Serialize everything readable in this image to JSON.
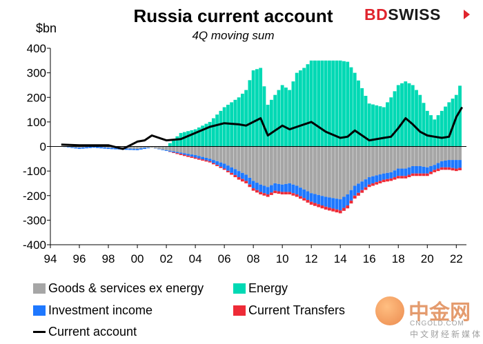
{
  "header": {
    "title": "Russia current account",
    "subtitle": "4Q moving sum",
    "y_unit": "$bn"
  },
  "logo": {
    "part1": "BD",
    "part2": "SWISS"
  },
  "watermark": {
    "main": "中金网",
    "sub_en": "CNGOLD.COM",
    "sub_cn": "中文财经新媒体"
  },
  "colors": {
    "goods": "#a6a6a6",
    "energy": "#00d9b4",
    "investment": "#1e78ff",
    "transfers": "#ee2b37",
    "current_account": "#000000"
  },
  "legend": {
    "goods": "Goods & services ex energy",
    "energy": "Energy",
    "investment": "Investment income",
    "transfers": "Current Transfers",
    "current_account": "Current account"
  },
  "chart_data": {
    "type": "bar",
    "stacked": true,
    "title": "Russia current account",
    "subtitle": "4Q moving sum",
    "ylabel": "$bn",
    "ylim": [
      -400,
      400
    ],
    "yticks": [
      -400,
      -300,
      -200,
      -100,
      0,
      100,
      200,
      300,
      400
    ],
    "xlim": [
      1994,
      2022.7
    ],
    "xticks": [
      "94",
      "96",
      "98",
      "00",
      "02",
      "04",
      "06",
      "08",
      "10",
      "12",
      "14",
      "16",
      "18",
      "20",
      "22"
    ],
    "grid": false,
    "legend_position": "bottom",
    "anchors": {
      "x": [
        1994.75,
        1996,
        1997,
        1998,
        1999,
        2000,
        2000.5,
        2001,
        2002,
        2003,
        2004,
        2005,
        2006,
        2007,
        2007.5,
        2008,
        2008.5,
        2009,
        2009.5,
        2010,
        2010.5,
        2011,
        2011.5,
        2012,
        2013,
        2014,
        2014.5,
        2015,
        2016,
        2017,
        2017.5,
        2018,
        2018.5,
        2019,
        2019.5,
        2020,
        2020.5,
        2021,
        2021.5,
        2022,
        2022.4
      ],
      "goods": [
        0,
        -5,
        0,
        -5,
        -8,
        -10,
        -5,
        -5,
        -15,
        -25,
        -35,
        -50,
        -70,
        -100,
        -115,
        -140,
        -155,
        -165,
        -150,
        -155,
        -150,
        -160,
        -175,
        -190,
        -205,
        -215,
        -195,
        -160,
        -125,
        -110,
        -105,
        -90,
        -90,
        -80,
        -80,
        -85,
        -75,
        -60,
        -55,
        -55,
        -55
      ],
      "energy": [
        0,
        0,
        0,
        0,
        0,
        0,
        0,
        0,
        0,
        55,
        70,
        100,
        160,
        200,
        230,
        310,
        320,
        170,
        210,
        250,
        230,
        300,
        320,
        350,
        350,
        350,
        345,
        300,
        175,
        160,
        200,
        250,
        265,
        250,
        210,
        145,
        110,
        145,
        180,
        210,
        270
      ],
      "investment": [
        0,
        -5,
        -5,
        -5,
        -5,
        -5,
        -5,
        0,
        -3,
        -5,
        -10,
        -10,
        -20,
        -25,
        -25,
        -30,
        -30,
        -30,
        -30,
        -30,
        -35,
        -35,
        -35,
        -35,
        -40,
        -45,
        -45,
        -40,
        -30,
        -25,
        -25,
        -30,
        -30,
        -30,
        -30,
        -25,
        -20,
        -25,
        -30,
        -35,
        -30
      ],
      "transfers": [
        0,
        0,
        0,
        0,
        0,
        0,
        0,
        0,
        0,
        -5,
        -5,
        -5,
        -5,
        -10,
        -10,
        -10,
        -10,
        -10,
        -10,
        -10,
        -10,
        -10,
        -10,
        -12,
        -12,
        -12,
        -12,
        -12,
        -10,
        -10,
        -10,
        -10,
        -10,
        -10,
        -10,
        -10,
        -10,
        -10,
        -10,
        -10,
        -10
      ],
      "current_account": [
        8,
        5,
        5,
        5,
        -10,
        20,
        25,
        45,
        25,
        30,
        55,
        80,
        95,
        90,
        85,
        100,
        115,
        45,
        65,
        85,
        70,
        80,
        90,
        100,
        60,
        35,
        40,
        65,
        25,
        35,
        40,
        75,
        115,
        90,
        60,
        45,
        40,
        35,
        40,
        120,
        160
      ]
    }
  }
}
